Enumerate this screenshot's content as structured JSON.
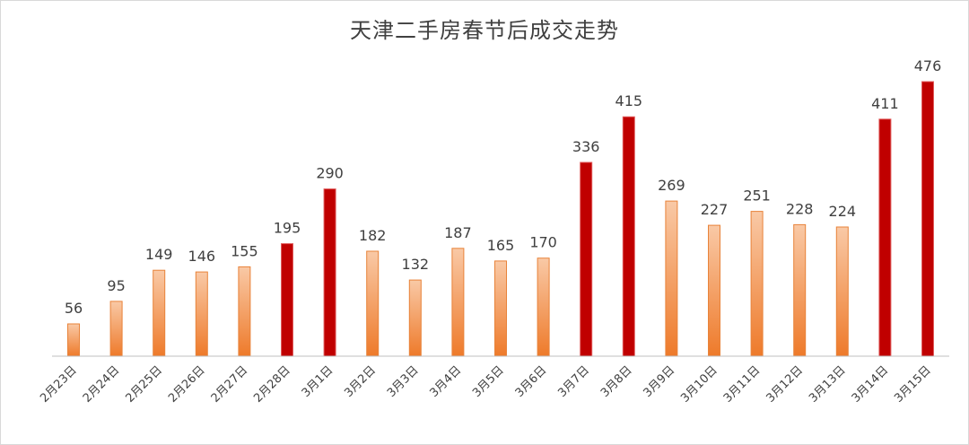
{
  "chart_data": {
    "type": "bar",
    "title": "天津二手房春节后成交走势",
    "xlabel": "",
    "ylabel": "",
    "ylim": [
      0,
      500
    ],
    "grid": false,
    "legend": "none",
    "categories": [
      "2月23日",
      "2月24日",
      "2月25日",
      "2月26日",
      "2月27日",
      "2月28日",
      "3月1日",
      "3月2日",
      "3月3日",
      "3月4日",
      "3月5日",
      "3月6日",
      "3月7日",
      "3月8日",
      "3月9日",
      "3月10日",
      "3月11日",
      "3月12日",
      "3月13日",
      "3月14日",
      "3月15日"
    ],
    "series": [
      {
        "values": [
          56,
          95,
          149,
          146,
          155,
          195,
          290,
          182,
          132,
          187,
          165,
          170,
          336,
          415,
          269,
          227,
          251,
          228,
          224,
          411,
          476
        ],
        "highlighted": [
          false,
          false,
          false,
          false,
          false,
          true,
          true,
          false,
          false,
          false,
          false,
          false,
          true,
          true,
          false,
          false,
          false,
          false,
          false,
          true,
          true
        ]
      }
    ],
    "colors": {
      "normal_top": "#f9c9a6",
      "normal_bottom": "#ee7a2a",
      "normal_edge": "#e8833a",
      "highlight": "#c00000",
      "highlight_edge": "#e05a5a",
      "axis": "#bfbfbf"
    }
  }
}
